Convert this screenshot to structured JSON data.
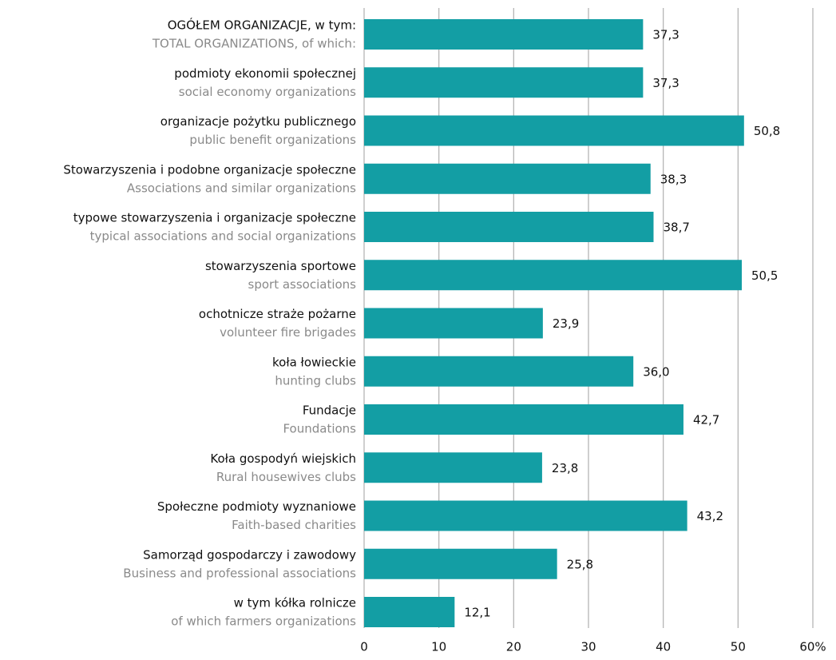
{
  "chart_data": {
    "type": "bar",
    "orientation": "horizontal",
    "categories": [
      "OGÓŁEM ORGANIZACJE, w tym:",
      "podmioty ekonomii społecznej",
      "organizacje pożytku publicznego",
      "Stowarzyszenia i podobne organizacje społeczne",
      "typowe stowarzyszenia i organizacje społeczne",
      "stowarzyszenia sportowe",
      "ochotnicze straże pożarne",
      "koła łowieckie",
      "Fundacje",
      "Koła gospodyń wiejskich",
      "Społeczne podmioty wyznaniowe",
      "Samorząd gospodarczy i zawodowy",
      "w tym kółka rolnicze"
    ],
    "categories_en": [
      "TOTAL ORGANIZATIONS, of which:",
      "social economy organizations",
      "public benefit organizations",
      "Associations and similar organizations",
      "typical associations and social organizations",
      "sport associations",
      "volunteer fire brigades",
      "hunting clubs",
      "Foundations",
      "Rural housewives clubs",
      "Faith-based charities",
      "Business and professional associations",
      "of which farmers organizations"
    ],
    "values": [
      37.3,
      37.3,
      50.8,
      38.3,
      38.7,
      50.5,
      23.9,
      36.0,
      42.7,
      23.8,
      43.2,
      25.8,
      12.1
    ],
    "value_labels": [
      "37,3",
      "37,3",
      "50,8",
      "38,3",
      "38,7",
      "50,5",
      "23,9",
      "36,0",
      "42,7",
      "23,8",
      "43,2",
      "25,8",
      "12,1"
    ],
    "color": "#139ea4",
    "xlim": [
      0,
      60
    ],
    "xticks": [
      0,
      10,
      20,
      30,
      40,
      50,
      {
        "value": 60,
        "label": "60%"
      }
    ],
    "grid": true
  }
}
